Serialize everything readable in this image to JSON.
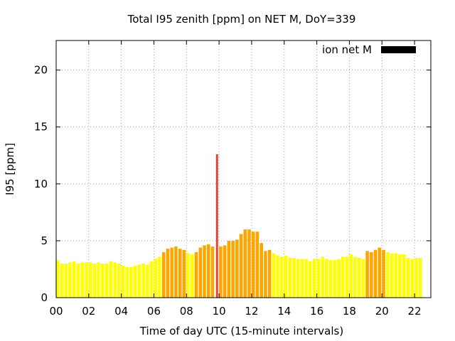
{
  "chart_data": {
    "type": "bar",
    "title": "Total I95 zenith [ppm] on NET M, DoY=339",
    "xlabel": "Time of day UTC (15-minute intervals)",
    "ylabel": "I95 [ppm]",
    "xlim": [
      0,
      23
    ],
    "ylim": [
      0,
      22.6
    ],
    "xticks": [
      0,
      2,
      4,
      6,
      8,
      10,
      12,
      14,
      16,
      18,
      20,
      22
    ],
    "xtick_labels": [
      "00",
      "02",
      "04",
      "06",
      "08",
      "10",
      "12",
      "14",
      "16",
      "18",
      "20",
      "22"
    ],
    "yticks": [
      0,
      5,
      10,
      15,
      20
    ],
    "ytick_labels": [
      "0",
      "5",
      "10",
      "15",
      "20"
    ],
    "grid": true,
    "legend": {
      "label": "ion net M",
      "color": "#000000",
      "position": "top-right"
    },
    "bar_interval_hours": 0.25,
    "colors": {
      "low": "#ffff00",
      "medium": "#ffa500",
      "high": "#e0453a"
    },
    "bins": [
      {
        "t": 0.0,
        "v": 3.3,
        "level": "low"
      },
      {
        "t": 0.25,
        "v": 3.0,
        "level": "low"
      },
      {
        "t": 0.5,
        "v": 3.0,
        "level": "low"
      },
      {
        "t": 0.75,
        "v": 3.1,
        "level": "low"
      },
      {
        "t": 1.0,
        "v": 3.2,
        "level": "low"
      },
      {
        "t": 1.25,
        "v": 3.0,
        "level": "low"
      },
      {
        "t": 1.5,
        "v": 3.1,
        "level": "low"
      },
      {
        "t": 1.75,
        "v": 3.1,
        "level": "low"
      },
      {
        "t": 2.0,
        "v": 3.1,
        "level": "low"
      },
      {
        "t": 2.25,
        "v": 3.0,
        "level": "low"
      },
      {
        "t": 2.5,
        "v": 3.1,
        "level": "low"
      },
      {
        "t": 2.75,
        "v": 3.0,
        "level": "low"
      },
      {
        "t": 3.0,
        "v": 3.0,
        "level": "low"
      },
      {
        "t": 3.25,
        "v": 3.2,
        "level": "low"
      },
      {
        "t": 3.5,
        "v": 3.1,
        "level": "low"
      },
      {
        "t": 3.75,
        "v": 3.0,
        "level": "low"
      },
      {
        "t": 4.0,
        "v": 2.8,
        "level": "low"
      },
      {
        "t": 4.25,
        "v": 2.7,
        "level": "low"
      },
      {
        "t": 4.5,
        "v": 2.7,
        "level": "low"
      },
      {
        "t": 4.75,
        "v": 2.8,
        "level": "low"
      },
      {
        "t": 5.0,
        "v": 2.9,
        "level": "low"
      },
      {
        "t": 5.25,
        "v": 3.0,
        "level": "low"
      },
      {
        "t": 5.5,
        "v": 2.9,
        "level": "low"
      },
      {
        "t": 5.75,
        "v": 3.2,
        "level": "low"
      },
      {
        "t": 6.0,
        "v": 3.4,
        "level": "low"
      },
      {
        "t": 6.25,
        "v": 3.6,
        "level": "low"
      },
      {
        "t": 6.5,
        "v": 4.0,
        "level": "medium"
      },
      {
        "t": 6.75,
        "v": 4.3,
        "level": "medium"
      },
      {
        "t": 7.0,
        "v": 4.4,
        "level": "medium"
      },
      {
        "t": 7.25,
        "v": 4.5,
        "level": "medium"
      },
      {
        "t": 7.5,
        "v": 4.3,
        "level": "medium"
      },
      {
        "t": 7.75,
        "v": 4.2,
        "level": "medium"
      },
      {
        "t": 8.0,
        "v": 3.9,
        "level": "low"
      },
      {
        "t": 8.25,
        "v": 3.8,
        "level": "low"
      },
      {
        "t": 8.5,
        "v": 4.0,
        "level": "medium"
      },
      {
        "t": 8.75,
        "v": 4.4,
        "level": "medium"
      },
      {
        "t": 9.0,
        "v": 4.6,
        "level": "medium"
      },
      {
        "t": 9.25,
        "v": 4.7,
        "level": "medium"
      },
      {
        "t": 9.5,
        "v": 4.5,
        "level": "medium"
      },
      {
        "t": 9.75,
        "v": 12.6,
        "level": "high"
      },
      {
        "t": 10.0,
        "v": 4.5,
        "level": "medium"
      },
      {
        "t": 10.25,
        "v": 4.6,
        "level": "medium"
      },
      {
        "t": 10.5,
        "v": 5.0,
        "level": "medium"
      },
      {
        "t": 10.75,
        "v": 5.0,
        "level": "medium"
      },
      {
        "t": 11.0,
        "v": 5.1,
        "level": "medium"
      },
      {
        "t": 11.25,
        "v": 5.6,
        "level": "medium"
      },
      {
        "t": 11.5,
        "v": 6.0,
        "level": "medium"
      },
      {
        "t": 11.75,
        "v": 6.0,
        "level": "medium"
      },
      {
        "t": 12.0,
        "v": 5.8,
        "level": "medium"
      },
      {
        "t": 12.25,
        "v": 5.8,
        "level": "medium"
      },
      {
        "t": 12.5,
        "v": 4.8,
        "level": "medium"
      },
      {
        "t": 12.75,
        "v": 4.1,
        "level": "medium"
      },
      {
        "t": 13.0,
        "v": 4.2,
        "level": "medium"
      },
      {
        "t": 13.25,
        "v": 3.9,
        "level": "low"
      },
      {
        "t": 13.5,
        "v": 3.7,
        "level": "low"
      },
      {
        "t": 13.75,
        "v": 3.6,
        "level": "low"
      },
      {
        "t": 14.0,
        "v": 3.7,
        "level": "low"
      },
      {
        "t": 14.25,
        "v": 3.5,
        "level": "low"
      },
      {
        "t": 14.5,
        "v": 3.5,
        "level": "low"
      },
      {
        "t": 14.75,
        "v": 3.4,
        "level": "low"
      },
      {
        "t": 15.0,
        "v": 3.4,
        "level": "low"
      },
      {
        "t": 15.25,
        "v": 3.4,
        "level": "low"
      },
      {
        "t": 15.5,
        "v": 3.2,
        "level": "low"
      },
      {
        "t": 15.75,
        "v": 3.4,
        "level": "low"
      },
      {
        "t": 16.0,
        "v": 3.4,
        "level": "low"
      },
      {
        "t": 16.25,
        "v": 3.6,
        "level": "low"
      },
      {
        "t": 16.5,
        "v": 3.4,
        "level": "low"
      },
      {
        "t": 16.75,
        "v": 3.3,
        "level": "low"
      },
      {
        "t": 17.0,
        "v": 3.3,
        "level": "low"
      },
      {
        "t": 17.25,
        "v": 3.4,
        "level": "low"
      },
      {
        "t": 17.5,
        "v": 3.6,
        "level": "low"
      },
      {
        "t": 17.75,
        "v": 3.6,
        "level": "low"
      },
      {
        "t": 18.0,
        "v": 3.8,
        "level": "low"
      },
      {
        "t": 18.25,
        "v": 3.6,
        "level": "low"
      },
      {
        "t": 18.5,
        "v": 3.5,
        "level": "low"
      },
      {
        "t": 18.75,
        "v": 3.4,
        "level": "low"
      },
      {
        "t": 19.0,
        "v": 4.1,
        "level": "medium"
      },
      {
        "t": 19.25,
        "v": 4.0,
        "level": "medium"
      },
      {
        "t": 19.5,
        "v": 4.2,
        "level": "medium"
      },
      {
        "t": 19.75,
        "v": 4.4,
        "level": "medium"
      },
      {
        "t": 20.0,
        "v": 4.2,
        "level": "medium"
      },
      {
        "t": 20.25,
        "v": 4.0,
        "level": "low"
      },
      {
        "t": 20.5,
        "v": 3.9,
        "level": "low"
      },
      {
        "t": 20.75,
        "v": 3.9,
        "level": "low"
      },
      {
        "t": 21.0,
        "v": 3.8,
        "level": "low"
      },
      {
        "t": 21.25,
        "v": 3.8,
        "level": "low"
      },
      {
        "t": 21.5,
        "v": 3.5,
        "level": "low"
      },
      {
        "t": 21.75,
        "v": 3.4,
        "level": "low"
      },
      {
        "t": 22.0,
        "v": 3.5,
        "level": "low"
      },
      {
        "t": 22.25,
        "v": 3.5,
        "level": "low"
      }
    ]
  }
}
